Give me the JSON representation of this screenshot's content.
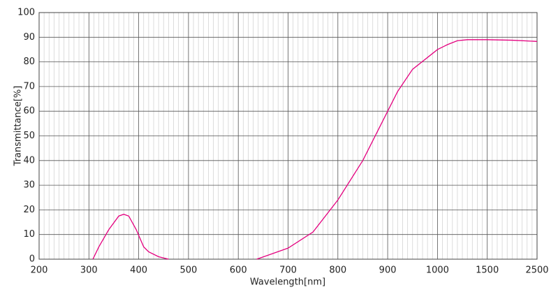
{
  "chart_data": {
    "type": "line",
    "x_label": "Wavelength[nm]",
    "y_label": "Transmittance[%]",
    "x": [
      308,
      320,
      340,
      360,
      370,
      380,
      395,
      410,
      420,
      440,
      460,
      550,
      637,
      700,
      750,
      800,
      850,
      880,
      900,
      920,
      950,
      1000,
      1100,
      1200,
      1300,
      1500,
      2000,
      2500
    ],
    "series": [
      {
        "color": "#e4007f",
        "values": [
          0,
          5,
          12,
          17.5,
          18.2,
          17.5,
          12,
          5,
          3,
          1,
          0,
          null,
          0,
          4.5,
          11,
          24,
          40,
          52,
          60,
          68,
          77,
          85,
          87,
          88.6,
          89,
          89,
          88.8,
          88.3
        ]
      }
    ],
    "xlim": [
      200,
      2500
    ],
    "xticks": [
      200,
      300,
      400,
      500,
      600,
      700,
      800,
      900,
      1000,
      1500,
      2500
    ],
    "ylim": [
      0,
      100
    ],
    "yticks": [
      0,
      10,
      20,
      30,
      40,
      50,
      60,
      70,
      80,
      90,
      100
    ],
    "grid": true,
    "minor_grid": true
  }
}
